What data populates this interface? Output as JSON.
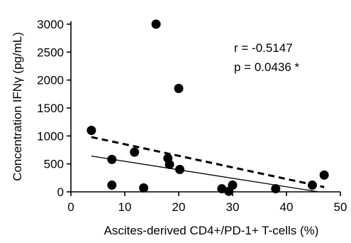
{
  "chart_data": {
    "type": "scatter",
    "xlabel": "Ascites-derived CD4+/PD-1+ T-cells (%)",
    "ylabel": "Concentration IFNγ (pg/mL)",
    "xlim": [
      0,
      50
    ],
    "ylim": [
      0,
      3000
    ],
    "x_ticks": [
      "0",
      "10",
      "20",
      "30",
      "40",
      "50"
    ],
    "y_ticks": [
      "0",
      "500",
      "1000",
      "1500",
      "2000",
      "2500",
      "3000"
    ],
    "grid": false,
    "annotations": [
      "r = -0.5147",
      "p = 0.0436 *"
    ],
    "points": [
      {
        "x": 3.8,
        "y": 1100
      },
      {
        "x": 7.6,
        "y": 580
      },
      {
        "x": 7.6,
        "y": 120
      },
      {
        "x": 11.8,
        "y": 710
      },
      {
        "x": 13.5,
        "y": 70
      },
      {
        "x": 15.8,
        "y": 3000
      },
      {
        "x": 18.0,
        "y": 600
      },
      {
        "x": 18.3,
        "y": 490
      },
      {
        "x": 20.0,
        "y": 1850
      },
      {
        "x": 20.2,
        "y": 400
      },
      {
        "x": 28.0,
        "y": 55
      },
      {
        "x": 29.3,
        "y": 10
      },
      {
        "x": 30.0,
        "y": 120
      },
      {
        "x": 38.0,
        "y": 55
      },
      {
        "x": 44.8,
        "y": 120
      },
      {
        "x": 47.0,
        "y": 300
      }
    ],
    "lines": [
      {
        "style": "dashed",
        "x": [
          3.8,
          47.0
        ],
        "y": [
          980,
          85
        ]
      },
      {
        "style": "solid",
        "x": [
          3.8,
          46.0
        ],
        "y": [
          640,
          0
        ]
      }
    ]
  }
}
